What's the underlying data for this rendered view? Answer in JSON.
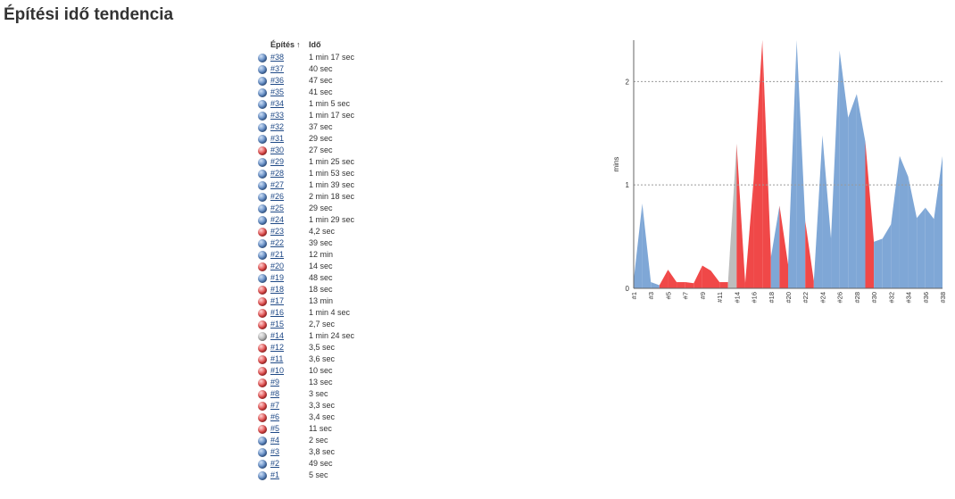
{
  "page": {
    "title": "Építési idő tendencia"
  },
  "table": {
    "header_build": "Építés",
    "sort_indicator": "↑",
    "header_duration": "Idő",
    "rows": [
      {
        "build": "#38",
        "duration": "1 min 17 sec",
        "status": "blue"
      },
      {
        "build": "#37",
        "duration": "40 sec",
        "status": "blue"
      },
      {
        "build": "#36",
        "duration": "47 sec",
        "status": "blue"
      },
      {
        "build": "#35",
        "duration": "41 sec",
        "status": "blue"
      },
      {
        "build": "#34",
        "duration": "1 min 5 sec",
        "status": "blue"
      },
      {
        "build": "#33",
        "duration": "1 min 17 sec",
        "status": "blue"
      },
      {
        "build": "#32",
        "duration": "37 sec",
        "status": "blue"
      },
      {
        "build": "#31",
        "duration": "29 sec",
        "status": "blue"
      },
      {
        "build": "#30",
        "duration": "27 sec",
        "status": "red"
      },
      {
        "build": "#29",
        "duration": "1 min 25 sec",
        "status": "blue"
      },
      {
        "build": "#28",
        "duration": "1 min 53 sec",
        "status": "blue"
      },
      {
        "build": "#27",
        "duration": "1 min 39 sec",
        "status": "blue"
      },
      {
        "build": "#26",
        "duration": "2 min 18 sec",
        "status": "blue"
      },
      {
        "build": "#25",
        "duration": "29 sec",
        "status": "blue"
      },
      {
        "build": "#24",
        "duration": "1 min 29 sec",
        "status": "blue"
      },
      {
        "build": "#23",
        "duration": "4,2 sec",
        "status": "red"
      },
      {
        "build": "#22",
        "duration": "39 sec",
        "status": "blue"
      },
      {
        "build": "#21",
        "duration": "12 min",
        "status": "blue"
      },
      {
        "build": "#20",
        "duration": "14 sec",
        "status": "red"
      },
      {
        "build": "#19",
        "duration": "48 sec",
        "status": "blue"
      },
      {
        "build": "#18",
        "duration": "18 sec",
        "status": "red"
      },
      {
        "build": "#17",
        "duration": "13 min",
        "status": "red"
      },
      {
        "build": "#16",
        "duration": "1 min 4 sec",
        "status": "red"
      },
      {
        "build": "#15",
        "duration": "2,7 sec",
        "status": "red"
      },
      {
        "build": "#14",
        "duration": "1 min 24 sec",
        "status": "grey"
      },
      {
        "build": "#12",
        "duration": "3,5 sec",
        "status": "red"
      },
      {
        "build": "#11",
        "duration": "3,6 sec",
        "status": "red"
      },
      {
        "build": "#10",
        "duration": "10 sec",
        "status": "red"
      },
      {
        "build": "#9",
        "duration": "13 sec",
        "status": "red"
      },
      {
        "build": "#8",
        "duration": "3 sec",
        "status": "red"
      },
      {
        "build": "#7",
        "duration": "3,3 sec",
        "status": "red"
      },
      {
        "build": "#6",
        "duration": "3,4 sec",
        "status": "red"
      },
      {
        "build": "#5",
        "duration": "11 sec",
        "status": "red"
      },
      {
        "build": "#4",
        "duration": "2 sec",
        "status": "blue"
      },
      {
        "build": "#3",
        "duration": "3,8 sec",
        "status": "blue"
      },
      {
        "build": "#2",
        "duration": "49 sec",
        "status": "blue"
      },
      {
        "build": "#1",
        "duration": "5 sec",
        "status": "blue"
      }
    ]
  },
  "colors": {
    "success": "#7fa7d6",
    "failure": "#f04848",
    "aborted": "#bdbdbd",
    "link": "#204a87"
  },
  "chart_data": {
    "type": "area",
    "ylabel": "mins",
    "ylim": [
      0,
      2.4
    ],
    "yticks": [
      0,
      1,
      2
    ],
    "grid": "horizontal dashed",
    "xlabels": [
      "#1",
      "#3",
      "#5",
      "#7",
      "#9",
      "#11",
      "#14",
      "#16",
      "#18",
      "#20",
      "#22",
      "#24",
      "#26",
      "#28",
      "#30",
      "#32",
      "#34",
      "#36",
      "#38"
    ],
    "builds": [
      "#1",
      "#2",
      "#3",
      "#4",
      "#5",
      "#6",
      "#7",
      "#8",
      "#9",
      "#10",
      "#11",
      "#12",
      "#14",
      "#15",
      "#16",
      "#17",
      "#18",
      "#19",
      "#20",
      "#21",
      "#22",
      "#23",
      "#24",
      "#25",
      "#26",
      "#27",
      "#28",
      "#29",
      "#30",
      "#31",
      "#32",
      "#33",
      "#34",
      "#35",
      "#36",
      "#37",
      "#38"
    ],
    "minutes": [
      0.08,
      0.82,
      0.06,
      0.03,
      0.18,
      0.06,
      0.06,
      0.05,
      0.22,
      0.17,
      0.06,
      0.06,
      1.4,
      0.05,
      1.07,
      13,
      0.3,
      0.8,
      0.23,
      12,
      0.65,
      0.07,
      1.48,
      0.48,
      2.3,
      1.65,
      1.88,
      1.42,
      0.45,
      0.48,
      0.62,
      1.28,
      1.08,
      0.68,
      0.78,
      0.67,
      1.28
    ],
    "status": [
      "success",
      "success",
      "success",
      "success",
      "failure",
      "failure",
      "failure",
      "failure",
      "failure",
      "failure",
      "failure",
      "failure",
      "aborted",
      "failure",
      "failure",
      "failure",
      "failure",
      "success",
      "failure",
      "success",
      "success",
      "failure",
      "success",
      "success",
      "success",
      "success",
      "success",
      "success",
      "failure",
      "success",
      "success",
      "success",
      "success",
      "success",
      "success",
      "success",
      "success"
    ]
  }
}
